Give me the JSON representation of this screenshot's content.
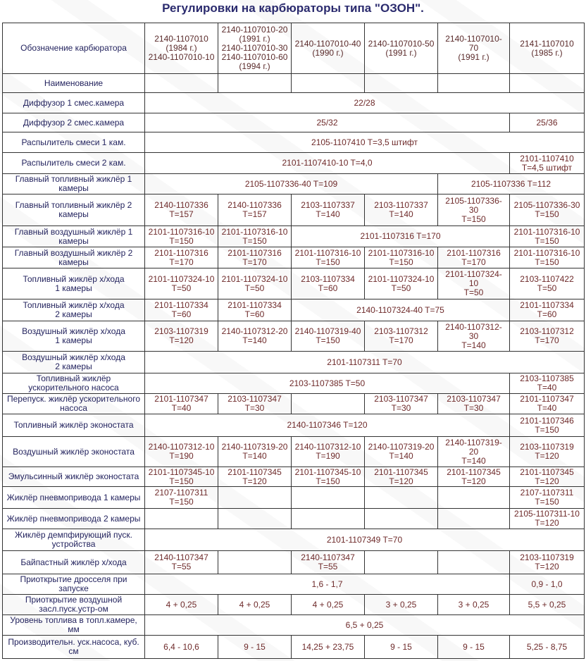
{
  "title": "Регулировки на карбюраторы типа \"ОЗОН\".",
  "colors": {
    "label_text": "#23235e",
    "value_text": "#6e2a2a",
    "title_text": "#2b2b6e",
    "border": "#333333"
  },
  "table": {
    "header": {
      "label": "Обозначение карбюратора",
      "models": [
        "2140-1107010\n(1984 г.)\n2140-1107010-10",
        "2140-1107010-20\n(1991 г.)\n2140-1107010-30\n2140-1107010-60\n(1994 г.)",
        "2140-1107010-40\n(1990 г.)",
        "2140-1107010-50\n(1991 г.)",
        "2140-1107010-\n70\n(1991 г.)",
        "2141-1107010\n(1985 г.)"
      ]
    },
    "rows": [
      {
        "label": "Наименование",
        "cells": [
          {
            "text": "",
            "span": 1
          },
          {
            "text": "",
            "span": 1
          },
          {
            "text": "",
            "span": 1
          },
          {
            "text": "",
            "span": 1
          },
          {
            "text": "",
            "span": 1
          },
          {
            "text": "",
            "span": 1
          }
        ]
      },
      {
        "label": "Диффузор 1 смес.камера",
        "cells": [
          {
            "text": "22/28",
            "span": 6
          }
        ]
      },
      {
        "label": "Диффузор 2 смес.камера",
        "cells": [
          {
            "text": "25/32",
            "span": 5
          },
          {
            "text": "25/36",
            "span": 1
          }
        ]
      },
      {
        "label": "Распылитель смеси 1 кам.",
        "cells": [
          {
            "text": "2105-1107410 T=3,5 штифт",
            "span": 6
          }
        ]
      },
      {
        "label": "Распылитель смеси 2 кам.",
        "cells": [
          {
            "text": "2101-1107410-10 T=4,0",
            "span": 5
          },
          {
            "text": "2101-1107410\nT=4,5 штифт",
            "span": 1
          }
        ]
      },
      {
        "label": "Главный топливный жиклёр 1\nкамеры",
        "cells": [
          {
            "text": "2105-1107336-40 T=109",
            "span": 4
          },
          {
            "text": "2105-1107336 T=112",
            "span": 2
          }
        ]
      },
      {
        "label": "Главный топливный жиклёр 2\nкамеры",
        "cells": [
          {
            "text": "2140-1107336\nT=157",
            "span": 1
          },
          {
            "text": "2140-1107336\nT=157",
            "span": 1
          },
          {
            "text": "2103-1107337\nT=140",
            "span": 1
          },
          {
            "text": "2103-1107337\nT=140",
            "span": 1
          },
          {
            "text": "2105-1107336-\n30\nT=150",
            "span": 1
          },
          {
            "text": "2105-1107336-30\nT=150",
            "span": 1
          }
        ]
      },
      {
        "label": "Главный воздушный жиклёр 1\nкамеры",
        "cells": [
          {
            "text": "2101-1107316-10\nT=150",
            "span": 1
          },
          {
            "text": "2101-1107316-10\nT=150",
            "span": 1
          },
          {
            "text": "2101-1107316 T=170",
            "span": 3
          },
          {
            "text": "2101-1107316-10\nT=150",
            "span": 1
          }
        ]
      },
      {
        "label": "Главный воздушный жиклёр 2\nкамеры",
        "cells": [
          {
            "text": "2101-1107316\nT=170",
            "span": 1
          },
          {
            "text": "2101-1107316\nT=170",
            "span": 1
          },
          {
            "text": "2101-1107316-10\nT=150",
            "span": 1
          },
          {
            "text": "2101-1107316-10\nT=150",
            "span": 1
          },
          {
            "text": "2101-1107316\nT=170",
            "span": 1
          },
          {
            "text": "2101-1107316-10\nT=150",
            "span": 1
          }
        ]
      },
      {
        "label": "Топливный жиклёр х/хода\n1 камеры",
        "cells": [
          {
            "text": "2101-1107324-10\nT=50",
            "span": 1
          },
          {
            "text": "2101-1107324-10\nT=50",
            "span": 1
          },
          {
            "text": "2103-1107334\nT=60",
            "span": 1
          },
          {
            "text": "2101-1107324-10\nT=50",
            "span": 1
          },
          {
            "text": "2101-1107324-\n10\nT=50",
            "span": 1
          },
          {
            "text": "2103-1107422\nT=50",
            "span": 1
          }
        ]
      },
      {
        "label": "Топливный жиклёр х/хода\n2 камеры",
        "cells": [
          {
            "text": "2101-1107334\nT=60",
            "span": 1
          },
          {
            "text": "2101-1107334\nT=60",
            "span": 1
          },
          {
            "text": "2140-1107324-40 T=75",
            "span": 3
          },
          {
            "text": "2101-1107334\nT=60",
            "span": 1
          }
        ]
      },
      {
        "label": "Воздушный жиклёр х/хода\n1 камеры",
        "cells": [
          {
            "text": "2103-1107319\nT=120",
            "span": 1
          },
          {
            "text": "2140-1107312-20\nT=140",
            "span": 1
          },
          {
            "text": "2140-1107319-40\nT=150",
            "span": 1
          },
          {
            "text": "2103-1107312\nT=170",
            "span": 1
          },
          {
            "text": "2140-1107312-\n30\nT=140",
            "span": 1
          },
          {
            "text": "2103-1107312\nT=170",
            "span": 1
          }
        ]
      },
      {
        "label": "Воздушный жиклёр х/хода\n2 камеры",
        "cells": [
          {
            "text": "2101-1107311 T=70",
            "span": 6
          }
        ]
      },
      {
        "label": "Топливный жиклёр\nускорительного насоса",
        "cells": [
          {
            "text": "2103-1107385 T=50",
            "span": 5
          },
          {
            "text": "2103-1107385\nT=40",
            "span": 1
          }
        ]
      },
      {
        "label": "Перепуск. жиклёр ускорительного\nнасоса",
        "cells": [
          {
            "text": "2101-1107347\nT=40",
            "span": 1
          },
          {
            "text": "2103-1107347\nT=30",
            "span": 1
          },
          {
            "text": "",
            "span": 1
          },
          {
            "text": "2103-1107347\nT=30",
            "span": 1
          },
          {
            "text": "2103-1107347\nT=30",
            "span": 1
          },
          {
            "text": "2101-1107347\nT=40",
            "span": 1
          }
        ]
      },
      {
        "label": "Топливный жиклёр эконостата",
        "cells": [
          {
            "text": "2140-1107346 T=120",
            "span": 5
          },
          {
            "text": "2101-1107346\nT=150",
            "span": 1
          }
        ]
      },
      {
        "label": "Воздушный жиклёр эконостата",
        "cells": [
          {
            "text": "2140-1107312-10\nT=190",
            "span": 1
          },
          {
            "text": "2140-1107319-20\nT=140",
            "span": 1
          },
          {
            "text": "2140-1107312-10\nT=190",
            "span": 1
          },
          {
            "text": "2140-1107319-20\nT=140",
            "span": 1
          },
          {
            "text": "2140-1107319-\n20\nT=140",
            "span": 1
          },
          {
            "text": "2103-1107319\nT=120",
            "span": 1
          }
        ]
      },
      {
        "label": "Эмульсинный жиклёр эконостата",
        "cells": [
          {
            "text": "2101-1107345-10\nT=150",
            "span": 1
          },
          {
            "text": "2101-1107345\nT=120",
            "span": 1
          },
          {
            "text": "2101-1107345-10\nT=150",
            "span": 1
          },
          {
            "text": "2101-1107345\nT=120",
            "span": 1
          },
          {
            "text": "2101-1107345\nT=120",
            "span": 1
          },
          {
            "text": "2101-1107345\nT=120",
            "span": 1
          }
        ]
      },
      {
        "label": "Жиклёр пневмопривода 1 камеры",
        "cells": [
          {
            "text": "2107-1107311\nT=150",
            "span": 1
          },
          {
            "text": "",
            "span": 1
          },
          {
            "text": "",
            "span": 1
          },
          {
            "text": "",
            "span": 1
          },
          {
            "text": "",
            "span": 1
          },
          {
            "text": "2107-1107311\nT=150",
            "span": 1
          }
        ]
      },
      {
        "label": "Жиклёр пневмопривода 2 камеры",
        "cells": [
          {
            "text": "",
            "span": 1
          },
          {
            "text": "",
            "span": 1
          },
          {
            "text": "",
            "span": 1
          },
          {
            "text": "",
            "span": 1
          },
          {
            "text": "",
            "span": 1
          },
          {
            "text": "2105-1107311-10\nT=120",
            "span": 1
          }
        ]
      },
      {
        "label": "Жиклёр демпфирующий пуск.\nустройства",
        "cells": [
          {
            "text": "2101-1107349 T=70",
            "span": 6
          }
        ]
      },
      {
        "label": "Байпастный жиклёр х/хода",
        "cells": [
          {
            "text": "2140-1107347\nT=55",
            "span": 1
          },
          {
            "text": "",
            "span": 1
          },
          {
            "text": "2140-1107347\nT=55",
            "span": 1
          },
          {
            "text": "",
            "span": 1
          },
          {
            "text": "",
            "span": 1
          },
          {
            "text": "2103-1107319\nT=120",
            "span": 1
          }
        ]
      },
      {
        "label": "Приоткрытие дросселя при\nзапуске",
        "cells": [
          {
            "text": "1,6 - 1,7",
            "span": 5
          },
          {
            "text": "0,9 - 1,0",
            "span": 1
          }
        ]
      },
      {
        "label": "Приоткрытие воздушной\nзасл.пуск.устр-ом",
        "cells": [
          {
            "text": "4 + 0,25",
            "span": 1
          },
          {
            "text": "4 + 0,25",
            "span": 1
          },
          {
            "text": "4 + 0,25",
            "span": 1
          },
          {
            "text": "3 + 0,25",
            "span": 1
          },
          {
            "text": "3 + 0,25",
            "span": 1
          },
          {
            "text": "5,5 + 0,25",
            "span": 1
          }
        ]
      },
      {
        "label": "Уровень топлива в топл.камере,\nмм",
        "cells": [
          {
            "text": "6,5 + 0,25",
            "span": 6
          }
        ]
      },
      {
        "label": "Производительн. уск.насоса, куб.\nсм",
        "cells": [
          {
            "text": "6,4 - 10,6",
            "span": 1
          },
          {
            "text": "9 - 15",
            "span": 1
          },
          {
            "text": "14,25 + 23,75",
            "span": 1
          },
          {
            "text": "9 - 15",
            "span": 1
          },
          {
            "text": "9 - 15",
            "span": 1
          },
          {
            "text": "5,25 - 8,75",
            "span": 1
          }
        ]
      }
    ]
  }
}
